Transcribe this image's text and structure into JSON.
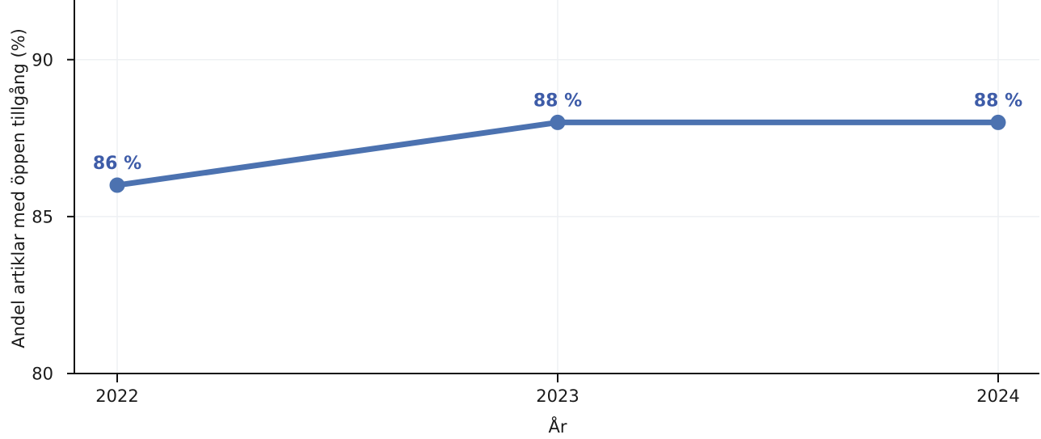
{
  "figure": {
    "background": "#ffffff"
  },
  "chart_data": {
    "type": "line",
    "title": "",
    "categories": [
      "2022",
      "2023",
      "2024"
    ],
    "x": [
      2022,
      2023,
      2024
    ],
    "series": [
      {
        "name": "Andel artiklar med öppen tillgång",
        "values": [
          86,
          88,
          88
        ]
      }
    ],
    "point_labels": [
      "86 %",
      "88 %",
      "88 %"
    ],
    "xlabel": "År",
    "ylabel": "Andel artiklar med öppen tillgång (%)",
    "ylim": [
      80,
      91.9
    ],
    "yticks": [
      80,
      85,
      90
    ],
    "ytick_labels": [
      "80",
      "85",
      "90"
    ],
    "grid": true,
    "legend": "none",
    "line_color": "#4C72B0",
    "marker_color": "#4C72B0",
    "label_color": "#3E5CA8",
    "axis_color": "#111111",
    "grid_color": "#eef0f3",
    "marker": "circle"
  }
}
